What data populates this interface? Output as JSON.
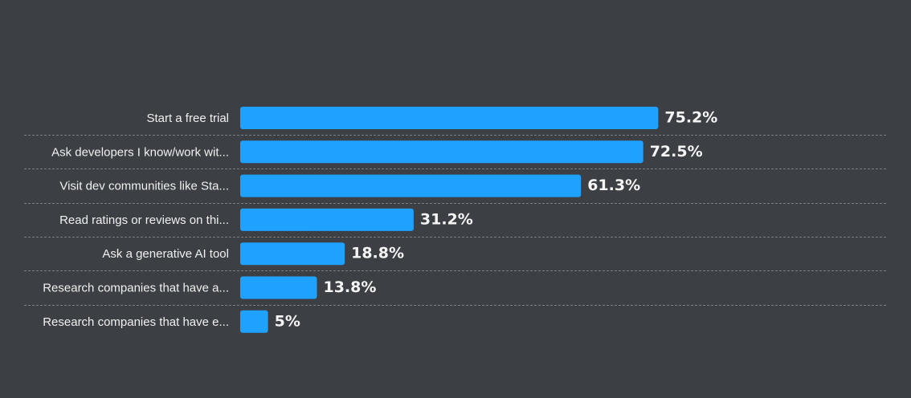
{
  "chart_data": {
    "type": "bar",
    "orientation": "horizontal",
    "categories": [
      "Start a free trial",
      "Ask developers I know/work wit...",
      "Visit dev communities like Sta...",
      "Read ratings or reviews on thi...",
      "Ask a generative AI tool",
      "Research companies that have a...",
      "Research companies that have e..."
    ],
    "values": [
      75.2,
      72.5,
      61.3,
      31.2,
      18.8,
      13.8,
      5
    ],
    "value_labels": [
      "75.2%",
      "72.5%",
      "61.3%",
      "31.2%",
      "18.8%",
      "13.8%",
      "5%"
    ],
    "unit": "%",
    "xlim": [
      0,
      100
    ],
    "bar_color": "#1ea1ff",
    "background_color": "#3c4045",
    "grid": false
  }
}
